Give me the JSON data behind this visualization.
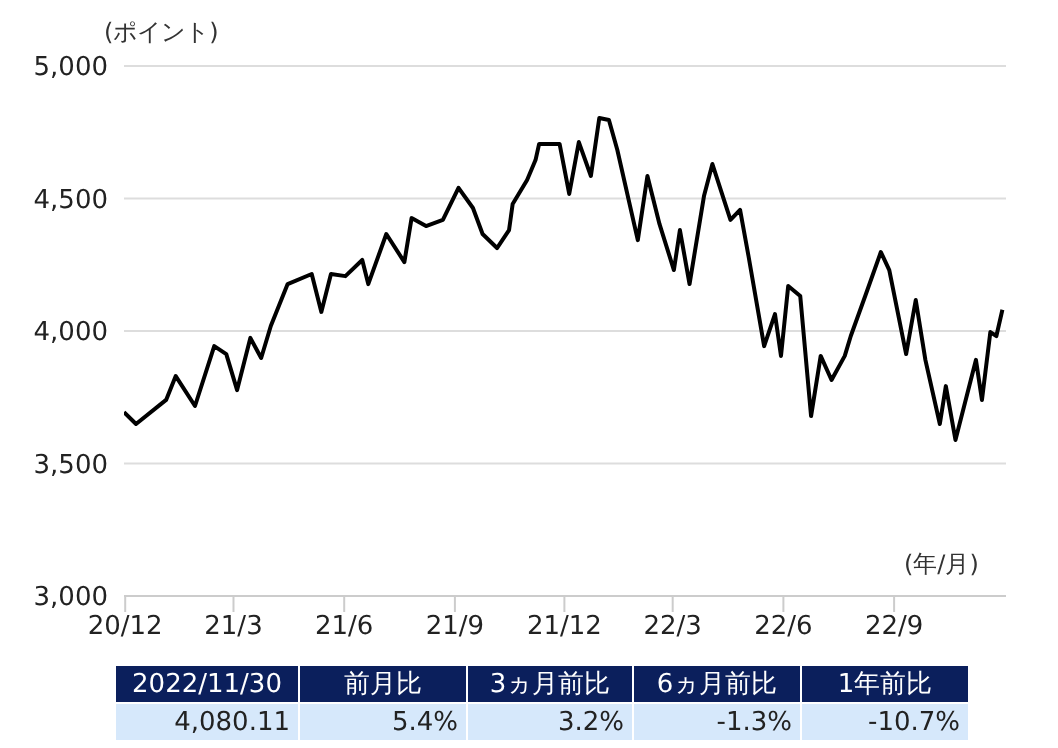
{
  "chart_data": {
    "type": "line",
    "ylabel": "(ポイント)",
    "xlabel": "(年/月)",
    "x": [
      "2020-11-30",
      "2020-12-10",
      "2021-01-04",
      "2021-01-12",
      "2021-01-28",
      "2021-02-13",
      "2021-02-23",
      "2021-03-04",
      "2021-03-15",
      "2021-03-24",
      "2021-04-01",
      "2021-04-15",
      "2021-05-05",
      "2021-05-13",
      "2021-05-21",
      "2021-06-02",
      "2021-06-16",
      "2021-06-21",
      "2021-07-06",
      "2021-07-21",
      "2021-07-27",
      "2021-08-08",
      "2021-08-22",
      "2021-09-04",
      "2021-09-16",
      "2021-09-24",
      "2021-10-06",
      "2021-10-16",
      "2021-10-19",
      "2021-10-31",
      "2021-11-07",
      "2021-11-10",
      "2021-11-27",
      "2021-12-05",
      "2021-12-13",
      "2021-12-23",
      "2021-12-30",
      "2022-01-07",
      "2022-01-14",
      "2022-01-31",
      "2022-02-08",
      "2022-02-18",
      "2022-03-02",
      "2022-03-07",
      "2022-03-15",
      "2022-03-27",
      "2022-04-03",
      "2022-04-18",
      "2022-04-26",
      "2022-05-03",
      "2022-05-16",
      "2022-05-25",
      "2022-05-30",
      "2022-06-05",
      "2022-06-15",
      "2022-06-24",
      "2022-07-02",
      "2022-07-11",
      "2022-07-22",
      "2022-07-27",
      "2022-08-08",
      "2022-08-21",
      "2022-08-28",
      "2022-09-11",
      "2022-09-19",
      "2022-09-27",
      "2022-10-09",
      "2022-10-14",
      "2022-10-22",
      "2022-11-08",
      "2022-11-13",
      "2022-11-20",
      "2022-11-25",
      "2022-11-30"
    ],
    "series": [
      {
        "color": "#000000",
        "values": [
          3694,
          3649,
          3740,
          3830,
          3717,
          3943,
          3913,
          3777,
          3974,
          3898,
          4019,
          4177,
          4215,
          4072,
          4215,
          4207,
          4268,
          4177,
          4366,
          4260,
          4426,
          4396,
          4419,
          4540,
          4464,
          4366,
          4313,
          4381,
          4479,
          4570,
          4645,
          4706,
          4706,
          4517,
          4713,
          4585,
          4804,
          4796,
          4683,
          4343,
          4585,
          4404,
          4230,
          4381,
          4177,
          4509,
          4630,
          4419,
          4457,
          4283,
          3943,
          4064,
          3906,
          4170,
          4132,
          3679,
          3906,
          3815,
          3906,
          3981,
          4132,
          4298,
          4230,
          3913,
          4117,
          3891,
          3649,
          3792,
          3589,
          3891,
          3740,
          3996,
          3981,
          4080
        ]
      }
    ],
    "xlim": [
      "2020-11-30",
      "2022-12-03"
    ],
    "xticks": [
      {
        "value": "2020-12-01",
        "label": "20/12"
      },
      {
        "value": "2021-03-01",
        "label": "21/3"
      },
      {
        "value": "2021-06-01",
        "label": "21/6"
      },
      {
        "value": "2021-09-01",
        "label": "21/9"
      },
      {
        "value": "2021-12-01",
        "label": "21/12"
      },
      {
        "value": "2022-03-01",
        "label": "22/3"
      },
      {
        "value": "2022-06-01",
        "label": "22/6"
      },
      {
        "value": "2022-09-01",
        "label": "22/9"
      }
    ],
    "ylim": [
      3000,
      5000
    ],
    "yticks": [
      {
        "value": 3000,
        "label": "3,000"
      },
      {
        "value": 3500,
        "label": "3,500"
      },
      {
        "value": 4000,
        "label": "4,000"
      },
      {
        "value": 4500,
        "label": "4,500"
      },
      {
        "value": 5000,
        "label": "5,000"
      }
    ],
    "grid": "y",
    "marker": "none",
    "line_style": "solid",
    "annotations": [
      "2022/11/30",
      "前月比",
      "3ヵ月前比",
      "6ヵ月前比",
      "1年前比",
      "4,080.11",
      "5.4%",
      "3.2%",
      "-1.3%",
      "-10.7%"
    ]
  }
}
